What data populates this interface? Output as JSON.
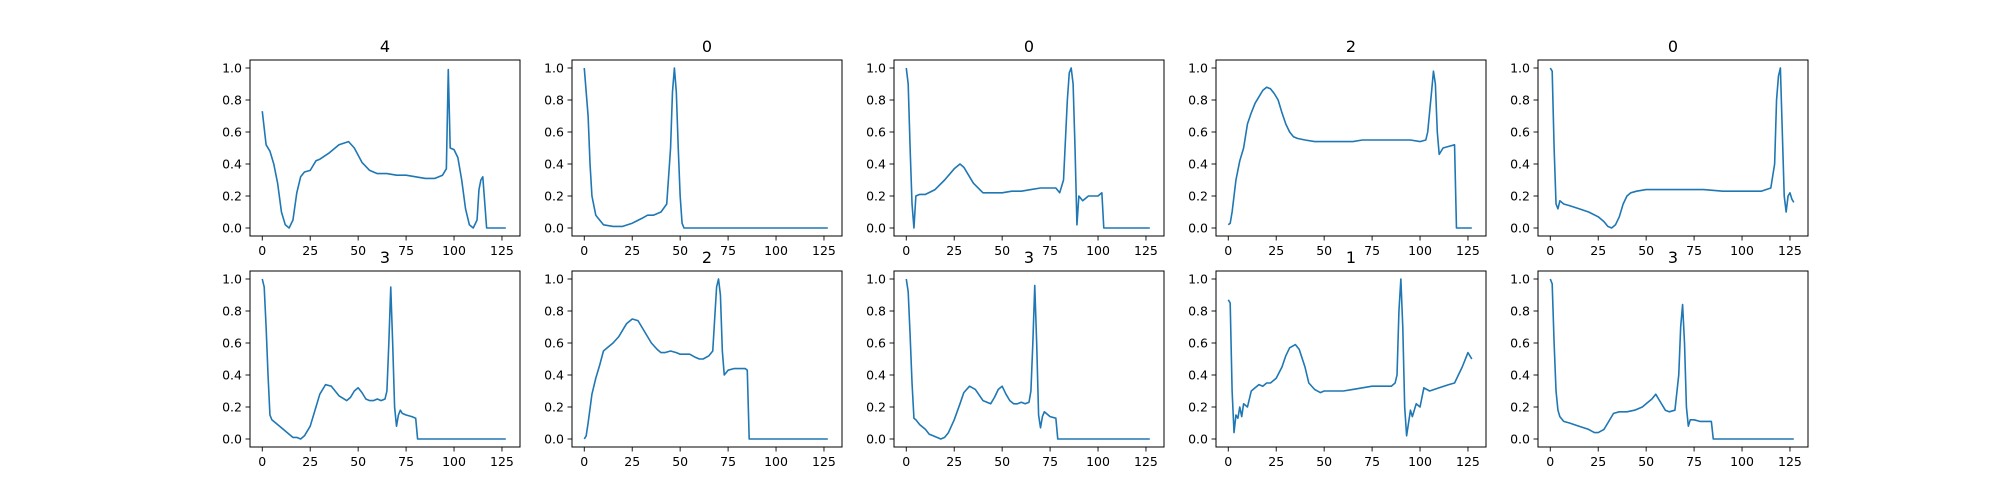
{
  "figure": {
    "background": "#ffffff",
    "line_color": "#1f77b4",
    "xtick_values": [
      0,
      25,
      50,
      75,
      100,
      125
    ],
    "ytick_values": [
      0.0,
      0.2,
      0.4,
      0.6,
      0.8,
      1.0
    ]
  },
  "chart_data": [
    {
      "type": "line",
      "title": "4",
      "xlabel": "",
      "ylabel": "",
      "xlim": [
        -6.4,
        134.4
      ],
      "ylim": [
        -0.05,
        1.05
      ],
      "grid": false,
      "x": [
        0,
        2,
        4,
        6,
        8,
        10,
        12,
        14,
        16,
        18,
        20,
        22,
        25,
        28,
        30,
        35,
        40,
        45,
        48,
        52,
        56,
        60,
        65,
        70,
        75,
        80,
        85,
        90,
        94,
        96,
        97,
        98,
        100,
        102,
        104,
        106,
        108,
        110,
        112,
        113,
        114,
        115,
        117,
        120,
        127
      ],
      "y": [
        0.73,
        0.52,
        0.48,
        0.4,
        0.28,
        0.1,
        0.02,
        0.0,
        0.05,
        0.22,
        0.32,
        0.35,
        0.36,
        0.42,
        0.43,
        0.47,
        0.52,
        0.54,
        0.5,
        0.41,
        0.36,
        0.34,
        0.34,
        0.33,
        0.33,
        0.32,
        0.31,
        0.31,
        0.33,
        0.37,
        0.99,
        0.5,
        0.49,
        0.44,
        0.3,
        0.12,
        0.02,
        0.0,
        0.05,
        0.24,
        0.3,
        0.32,
        0.0,
        0.0,
        0.0
      ]
    },
    {
      "type": "line",
      "title": "0",
      "xlabel": "",
      "ylabel": "",
      "xlim": [
        -6.4,
        134.4
      ],
      "ylim": [
        -0.05,
        1.05
      ],
      "grid": false,
      "x": [
        0,
        2,
        3,
        4,
        6,
        8,
        10,
        15,
        20,
        25,
        30,
        33,
        36,
        40,
        43,
        45,
        46,
        47,
        48,
        49,
        50,
        51,
        52,
        53,
        55,
        60,
        70,
        80,
        90,
        100,
        110,
        120,
        127
      ],
      "y": [
        1.0,
        0.7,
        0.4,
        0.2,
        0.08,
        0.05,
        0.02,
        0.01,
        0.01,
        0.03,
        0.06,
        0.08,
        0.08,
        0.1,
        0.15,
        0.5,
        0.85,
        1.0,
        0.85,
        0.5,
        0.2,
        0.03,
        0.0,
        0.0,
        0.0,
        0.0,
        0.0,
        0.0,
        0.0,
        0.0,
        0.0,
        0.0,
        0.0
      ]
    },
    {
      "type": "line",
      "title": "0",
      "xlabel": "",
      "ylabel": "",
      "xlim": [
        -6.4,
        134.4
      ],
      "ylim": [
        -0.05,
        1.05
      ],
      "grid": false,
      "x": [
        0,
        1,
        2,
        3,
        4,
        5,
        7,
        10,
        15,
        20,
        25,
        28,
        30,
        35,
        40,
        45,
        50,
        55,
        60,
        65,
        70,
        75,
        78,
        80,
        82,
        84,
        85,
        86,
        87,
        88,
        89,
        90,
        92,
        95,
        100,
        102,
        103,
        104,
        110,
        120,
        127
      ],
      "y": [
        1.0,
        0.9,
        0.5,
        0.15,
        0.0,
        0.2,
        0.21,
        0.21,
        0.24,
        0.3,
        0.37,
        0.4,
        0.38,
        0.28,
        0.22,
        0.22,
        0.22,
        0.23,
        0.23,
        0.24,
        0.25,
        0.25,
        0.25,
        0.22,
        0.3,
        0.8,
        0.97,
        1.0,
        0.9,
        0.5,
        0.02,
        0.2,
        0.17,
        0.2,
        0.2,
        0.22,
        0.0,
        0.0,
        0.0,
        0.0,
        0.0
      ]
    },
    {
      "type": "line",
      "title": "2",
      "xlabel": "",
      "ylabel": "",
      "xlim": [
        -6.4,
        134.4
      ],
      "ylim": [
        -0.05,
        1.05
      ],
      "grid": false,
      "x": [
        0,
        1,
        2,
        4,
        6,
        8,
        10,
        12,
        14,
        16,
        18,
        20,
        22,
        24,
        26,
        28,
        30,
        32,
        34,
        36,
        40,
        45,
        50,
        55,
        60,
        65,
        70,
        75,
        80,
        85,
        90,
        95,
        100,
        103,
        104,
        106,
        107,
        108,
        109,
        110,
        112,
        115,
        118,
        119,
        120,
        122,
        125,
        127
      ],
      "y": [
        0.02,
        0.03,
        0.1,
        0.3,
        0.42,
        0.5,
        0.65,
        0.72,
        0.78,
        0.82,
        0.86,
        0.88,
        0.87,
        0.84,
        0.8,
        0.72,
        0.65,
        0.6,
        0.57,
        0.56,
        0.55,
        0.54,
        0.54,
        0.54,
        0.54,
        0.54,
        0.55,
        0.55,
        0.55,
        0.55,
        0.55,
        0.55,
        0.54,
        0.55,
        0.6,
        0.85,
        0.98,
        0.9,
        0.6,
        0.46,
        0.5,
        0.51,
        0.52,
        0.0,
        0.0,
        0.0,
        0.0,
        0.0
      ]
    },
    {
      "type": "line",
      "title": "0",
      "xlabel": "",
      "ylabel": "",
      "xlim": [
        -6.4,
        134.4
      ],
      "ylim": [
        -0.05,
        1.05
      ],
      "grid": false,
      "x": [
        0,
        1,
        2,
        3,
        4,
        5,
        7,
        10,
        15,
        20,
        25,
        28,
        30,
        32,
        34,
        36,
        38,
        40,
        42,
        45,
        50,
        60,
        70,
        80,
        90,
        100,
        110,
        115,
        117,
        118,
        119,
        120,
        121,
        122,
        123,
        124,
        125,
        126,
        127
      ],
      "y": [
        1.0,
        0.98,
        0.5,
        0.15,
        0.12,
        0.17,
        0.15,
        0.14,
        0.12,
        0.1,
        0.07,
        0.04,
        0.01,
        0.0,
        0.02,
        0.07,
        0.15,
        0.2,
        0.22,
        0.23,
        0.24,
        0.24,
        0.24,
        0.24,
        0.23,
        0.23,
        0.23,
        0.25,
        0.4,
        0.8,
        0.95,
        1.0,
        0.6,
        0.2,
        0.1,
        0.2,
        0.22,
        0.18,
        0.16
      ]
    },
    {
      "type": "line",
      "title": "3",
      "xlabel": "",
      "ylabel": "",
      "xlim": [
        -6.4,
        134.4
      ],
      "ylim": [
        -0.05,
        1.05
      ],
      "grid": false,
      "x": [
        0,
        1,
        2,
        3,
        4,
        5,
        7,
        10,
        12,
        14,
        16,
        18,
        20,
        22,
        25,
        28,
        30,
        33,
        36,
        40,
        44,
        46,
        48,
        50,
        52,
        54,
        56,
        58,
        60,
        62,
        64,
        65,
        66,
        67,
        68,
        69,
        70,
        71,
        72,
        73,
        75,
        78,
        80,
        81,
        82,
        90,
        100,
        110,
        120,
        127
      ],
      "y": [
        1.0,
        0.95,
        0.7,
        0.4,
        0.15,
        0.12,
        0.1,
        0.07,
        0.05,
        0.03,
        0.01,
        0.01,
        0.0,
        0.02,
        0.08,
        0.2,
        0.28,
        0.34,
        0.33,
        0.27,
        0.24,
        0.26,
        0.3,
        0.32,
        0.29,
        0.25,
        0.24,
        0.24,
        0.25,
        0.24,
        0.25,
        0.3,
        0.6,
        0.95,
        0.6,
        0.2,
        0.08,
        0.15,
        0.18,
        0.16,
        0.15,
        0.14,
        0.13,
        0.0,
        0.0,
        0.0,
        0.0,
        0.0,
        0.0,
        0.0
      ]
    },
    {
      "type": "line",
      "title": "2",
      "xlabel": "",
      "ylabel": "",
      "xlim": [
        -6.4,
        134.4
      ],
      "ylim": [
        -0.05,
        1.05
      ],
      "grid": false,
      "x": [
        0,
        1,
        2,
        4,
        6,
        8,
        10,
        12,
        15,
        18,
        20,
        22,
        25,
        28,
        30,
        33,
        35,
        38,
        40,
        42,
        45,
        48,
        50,
        52,
        55,
        58,
        60,
        62,
        65,
        67,
        68,
        69,
        70,
        71,
        72,
        73,
        75,
        78,
        80,
        84,
        85,
        86,
        90,
        100,
        110,
        120,
        127
      ],
      "y": [
        0.0,
        0.02,
        0.1,
        0.28,
        0.38,
        0.46,
        0.55,
        0.57,
        0.6,
        0.64,
        0.68,
        0.72,
        0.75,
        0.74,
        0.7,
        0.64,
        0.6,
        0.56,
        0.54,
        0.54,
        0.55,
        0.54,
        0.53,
        0.53,
        0.53,
        0.51,
        0.5,
        0.5,
        0.52,
        0.55,
        0.75,
        0.95,
        1.0,
        0.9,
        0.55,
        0.4,
        0.43,
        0.44,
        0.44,
        0.44,
        0.43,
        0.0,
        0.0,
        0.0,
        0.0,
        0.0,
        0.0
      ]
    },
    {
      "type": "line",
      "title": "3",
      "xlabel": "",
      "ylabel": "",
      "xlim": [
        -6.4,
        134.4
      ],
      "ylim": [
        -0.05,
        1.05
      ],
      "grid": false,
      "x": [
        0,
        1,
        2,
        3,
        4,
        5,
        7,
        10,
        12,
        14,
        16,
        18,
        20,
        22,
        25,
        28,
        30,
        33,
        36,
        40,
        44,
        46,
        48,
        50,
        52,
        54,
        56,
        58,
        60,
        62,
        64,
        65,
        66,
        67,
        68,
        69,
        70,
        71,
        72,
        73,
        75,
        78,
        79,
        80,
        90,
        100,
        110,
        120,
        127
      ],
      "y": [
        1.0,
        0.92,
        0.65,
        0.35,
        0.13,
        0.12,
        0.09,
        0.06,
        0.03,
        0.02,
        0.01,
        0.0,
        0.01,
        0.04,
        0.12,
        0.22,
        0.29,
        0.33,
        0.31,
        0.24,
        0.22,
        0.26,
        0.31,
        0.33,
        0.28,
        0.24,
        0.22,
        0.22,
        0.23,
        0.22,
        0.23,
        0.3,
        0.6,
        0.96,
        0.6,
        0.15,
        0.07,
        0.14,
        0.17,
        0.16,
        0.14,
        0.13,
        0.0,
        0.0,
        0.0,
        0.0,
        0.0,
        0.0,
        0.0
      ]
    },
    {
      "type": "line",
      "title": "1",
      "xlabel": "",
      "ylabel": "",
      "xlim": [
        -6.4,
        134.4
      ],
      "ylim": [
        -0.05,
        1.05
      ],
      "grid": false,
      "x": [
        0,
        1,
        2,
        3,
        4,
        5,
        6,
        7,
        8,
        10,
        12,
        14,
        16,
        18,
        20,
        22,
        25,
        28,
        30,
        32,
        35,
        37,
        40,
        42,
        45,
        48,
        50,
        55,
        60,
        65,
        70,
        75,
        80,
        85,
        87,
        88,
        89,
        90,
        91,
        92,
        93,
        94,
        95,
        96,
        98,
        100,
        102,
        105,
        110,
        115,
        118,
        120,
        122,
        125,
        127
      ],
      "y": [
        0.87,
        0.85,
        0.3,
        0.04,
        0.15,
        0.13,
        0.2,
        0.14,
        0.22,
        0.2,
        0.3,
        0.32,
        0.34,
        0.33,
        0.35,
        0.35,
        0.38,
        0.45,
        0.52,
        0.57,
        0.59,
        0.56,
        0.45,
        0.35,
        0.31,
        0.29,
        0.3,
        0.3,
        0.3,
        0.31,
        0.32,
        0.33,
        0.33,
        0.33,
        0.35,
        0.4,
        0.8,
        1.0,
        0.7,
        0.2,
        0.02,
        0.1,
        0.18,
        0.14,
        0.22,
        0.2,
        0.32,
        0.3,
        0.32,
        0.34,
        0.35,
        0.4,
        0.45,
        0.54,
        0.5
      ]
    },
    {
      "type": "line",
      "title": "3",
      "xlabel": "",
      "ylabel": "",
      "xlim": [
        -6.4,
        134.4
      ],
      "ylim": [
        -0.05,
        1.05
      ],
      "grid": false,
      "x": [
        0,
        1,
        2,
        3,
        4,
        5,
        7,
        10,
        15,
        20,
        23,
        25,
        28,
        30,
        33,
        36,
        40,
        44,
        48,
        50,
        53,
        55,
        57,
        60,
        62,
        65,
        67,
        68,
        69,
        70,
        71,
        72,
        73,
        75,
        78,
        82,
        84,
        85,
        86,
        90,
        100,
        110,
        120,
        127
      ],
      "y": [
        1.0,
        0.97,
        0.6,
        0.3,
        0.18,
        0.14,
        0.11,
        0.1,
        0.08,
        0.06,
        0.04,
        0.04,
        0.06,
        0.1,
        0.16,
        0.17,
        0.17,
        0.18,
        0.2,
        0.22,
        0.25,
        0.28,
        0.24,
        0.18,
        0.17,
        0.18,
        0.4,
        0.7,
        0.84,
        0.6,
        0.2,
        0.08,
        0.12,
        0.12,
        0.11,
        0.11,
        0.11,
        0.0,
        0.0,
        0.0,
        0.0,
        0.0,
        0.0,
        0.0
      ]
    }
  ]
}
